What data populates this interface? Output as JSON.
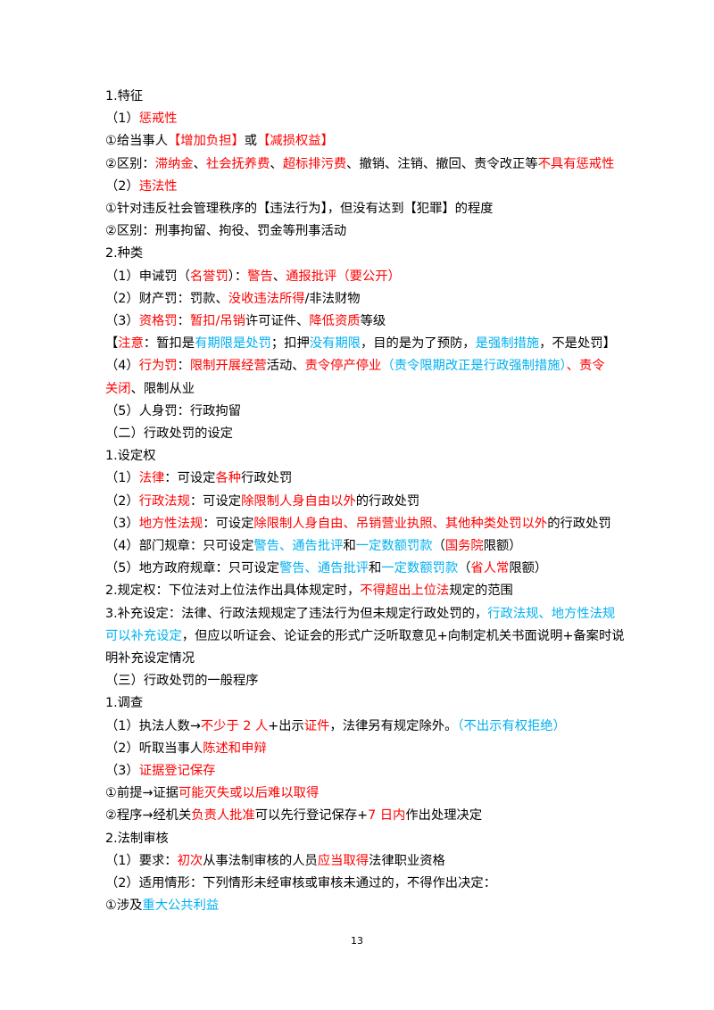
{
  "lines": [
    {
      "segments": [
        {
          "text": "1.特征",
          "color": "#000000"
        }
      ]
    },
    {
      "segments": [
        {
          "text": "（1）",
          "color": "#000000"
        },
        {
          "text": "惩戒性",
          "color": "#ff0000"
        }
      ]
    },
    {
      "segments": [
        {
          "text": "①给当事人",
          "color": "#000000"
        },
        {
          "text": "【增加负担】",
          "color": "#ff0000"
        },
        {
          "text": "或",
          "color": "#000000"
        },
        {
          "text": "【减损权益】",
          "color": "#ff0000"
        }
      ]
    },
    {
      "segments": [
        {
          "text": "②区别：",
          "color": "#000000"
        },
        {
          "text": "滞纳金",
          "color": "#ff0000"
        },
        {
          "text": "、",
          "color": "#000000"
        },
        {
          "text": "社会抚养费",
          "color": "#ff0000"
        },
        {
          "text": "、",
          "color": "#000000"
        },
        {
          "text": "超标排污费",
          "color": "#ff0000"
        },
        {
          "text": "、撤销、注销、撤回、责令改正等",
          "color": "#000000"
        },
        {
          "text": "不具有惩戒性",
          "color": "#ff0000"
        }
      ]
    },
    {
      "segments": [
        {
          "text": "（2）",
          "color": "#000000"
        },
        {
          "text": "违法性",
          "color": "#ff0000"
        }
      ]
    },
    {
      "segments": [
        {
          "text": "①针对违反社会管理秩序的【违法行为】，但没有达到【犯罪】的程度",
          "color": "#000000"
        }
      ]
    },
    {
      "segments": [
        {
          "text": "②区别：刑事拘留、拘役、罚金等刑事活动",
          "color": "#000000"
        }
      ]
    },
    {
      "segments": [
        {
          "text": "2.种类",
          "color": "#000000"
        }
      ]
    },
    {
      "segments": [
        {
          "text": "（1）申诫罚（",
          "color": "#000000"
        },
        {
          "text": "名誉罚",
          "color": "#ff0000"
        },
        {
          "text": "）：",
          "color": "#000000"
        },
        {
          "text": "警告",
          "color": "#ff0000"
        },
        {
          "text": "、",
          "color": "#000000"
        },
        {
          "text": "通报批评",
          "color": "#ff0000"
        },
        {
          "text": "（要公开）",
          "color": "#ff0000"
        }
      ]
    },
    {
      "segments": [
        {
          "text": "（2）财产罚：罚款、",
          "color": "#000000"
        },
        {
          "text": "没收违法所得",
          "color": "#ff0000"
        },
        {
          "text": "/非法财物",
          "color": "#000000"
        }
      ]
    },
    {
      "segments": [
        {
          "text": "（3）",
          "color": "#000000"
        },
        {
          "text": "资格罚",
          "color": "#ff0000"
        },
        {
          "text": "：",
          "color": "#000000"
        },
        {
          "text": "暂扣/吊销",
          "color": "#ff0000"
        },
        {
          "text": "许可证件、",
          "color": "#000000"
        },
        {
          "text": "降低资质",
          "color": "#ff0000"
        },
        {
          "text": "等级",
          "color": "#000000"
        }
      ]
    },
    {
      "segments": [
        {
          "text": "【",
          "color": "#000000"
        },
        {
          "text": "注意",
          "color": "#ff0000"
        },
        {
          "text": "：暂扣是",
          "color": "#000000"
        },
        {
          "text": "有期限是处罚",
          "color": "#00b0f0"
        },
        {
          "text": "；扣押",
          "color": "#000000"
        },
        {
          "text": "没有期限",
          "color": "#00b0f0"
        },
        {
          "text": "，目的是为了预防，",
          "color": "#000000"
        },
        {
          "text": "是强制措施",
          "color": "#00b0f0"
        },
        {
          "text": "，不是处罚】",
          "color": "#000000"
        }
      ]
    },
    {
      "segments": [
        {
          "text": "（4）",
          "color": "#000000"
        },
        {
          "text": "行为罚",
          "color": "#ff0000"
        },
        {
          "text": "：",
          "color": "#000000"
        },
        {
          "text": "限制开展经营",
          "color": "#ff0000"
        },
        {
          "text": "活动、",
          "color": "#000000"
        },
        {
          "text": "责令停产停业",
          "color": "#ff0000"
        },
        {
          "text": "（责令限期改正是行政强制措施）",
          "color": "#00b0f0"
        },
        {
          "text": "、责令",
          "color": "#ff0000"
        }
      ]
    },
    {
      "segments": [
        {
          "text": "关闭",
          "color": "#ff0000"
        },
        {
          "text": "、限制从业",
          "color": "#000000"
        }
      ]
    },
    {
      "segments": [
        {
          "text": "（5）人身罚：行政拘留",
          "color": "#000000"
        }
      ]
    },
    {
      "segments": [
        {
          "text": "（二）行政处罚的设定",
          "color": "#000000"
        }
      ]
    },
    {
      "segments": [
        {
          "text": "1.设定权",
          "color": "#000000"
        }
      ]
    },
    {
      "segments": [
        {
          "text": "（1）",
          "color": "#000000"
        },
        {
          "text": "法律",
          "color": "#ff0000"
        },
        {
          "text": "：可设定",
          "color": "#000000"
        },
        {
          "text": "各种",
          "color": "#ff0000"
        },
        {
          "text": "行政处罚",
          "color": "#000000"
        }
      ]
    },
    {
      "segments": [
        {
          "text": "（2）",
          "color": "#000000"
        },
        {
          "text": "行政法规",
          "color": "#ff0000"
        },
        {
          "text": "：可设定",
          "color": "#000000"
        },
        {
          "text": "除限制人身自由以外",
          "color": "#ff0000"
        },
        {
          "text": "的行政处罚",
          "color": "#000000"
        }
      ]
    },
    {
      "segments": [
        {
          "text": "（3）",
          "color": "#000000"
        },
        {
          "text": "地方性法规",
          "color": "#ff0000"
        },
        {
          "text": "：可设定",
          "color": "#000000"
        },
        {
          "text": "除限制人身自由、吊销营业执照、其他种类处罚以外",
          "color": "#ff0000"
        },
        {
          "text": "的行政处罚",
          "color": "#000000"
        }
      ]
    },
    {
      "segments": [
        {
          "text": "（4）部门规章：只可设定",
          "color": "#000000"
        },
        {
          "text": "警告、通告批评",
          "color": "#00b0f0"
        },
        {
          "text": "和",
          "color": "#000000"
        },
        {
          "text": "一定数额罚款",
          "color": "#00b0f0"
        },
        {
          "text": "（",
          "color": "#000000"
        },
        {
          "text": "国务院",
          "color": "#ff0000"
        },
        {
          "text": "限额）",
          "color": "#000000"
        }
      ]
    },
    {
      "segments": [
        {
          "text": "（5）地方政府规章：只可设定",
          "color": "#000000"
        },
        {
          "text": "警告、通告批评",
          "color": "#00b0f0"
        },
        {
          "text": "和",
          "color": "#000000"
        },
        {
          "text": "一定数额罚款",
          "color": "#00b0f0"
        },
        {
          "text": "（",
          "color": "#000000"
        },
        {
          "text": "省人常",
          "color": "#ff0000"
        },
        {
          "text": "限额）",
          "color": "#000000"
        }
      ]
    },
    {
      "segments": [
        {
          "text": "2.规定权：下位法对上位法作出具体规定时，",
          "color": "#000000"
        },
        {
          "text": "不得超出上位法",
          "color": "#ff0000"
        },
        {
          "text": "规定的范围",
          "color": "#000000"
        }
      ]
    },
    {
      "segments": [
        {
          "text": "3.补充设定：法律、行政法规规定了违法行为但未规定行政处罚的，",
          "color": "#000000"
        },
        {
          "text": "行政法规、地方性法规",
          "color": "#00b0f0"
        }
      ]
    },
    {
      "segments": [
        {
          "text": "可以补充设定",
          "color": "#00b0f0"
        },
        {
          "text": "，但应以听证会、论证会的形式广泛听取意见+向制定机关书面说明+备案时说",
          "color": "#000000"
        }
      ]
    },
    {
      "segments": [
        {
          "text": "明补充设定情况",
          "color": "#000000"
        }
      ]
    },
    {
      "segments": [
        {
          "text": "（三）行政处罚的一般程序",
          "color": "#000000"
        }
      ]
    },
    {
      "segments": [
        {
          "text": "1.调查",
          "color": "#000000"
        }
      ]
    },
    {
      "segments": [
        {
          "text": "（1）执法人数→",
          "color": "#000000"
        },
        {
          "text": "不少于 2 人",
          "color": "#ff0000"
        },
        {
          "text": "+出示",
          "color": "#000000"
        },
        {
          "text": "证件",
          "color": "#ff0000"
        },
        {
          "text": "，法律另有规定除外。",
          "color": "#000000"
        },
        {
          "text": "（不出示有权拒绝）",
          "color": "#00b0f0"
        }
      ]
    },
    {
      "segments": [
        {
          "text": "（2）听取当事人",
          "color": "#000000"
        },
        {
          "text": "陈述和申辩",
          "color": "#ff0000"
        }
      ]
    },
    {
      "segments": [
        {
          "text": "（3）",
          "color": "#000000"
        },
        {
          "text": "证据登记保存",
          "color": "#ff0000"
        }
      ]
    },
    {
      "segments": [
        {
          "text": "①前提→证据",
          "color": "#000000"
        },
        {
          "text": "可能灭失或以后难以取得",
          "color": "#ff0000"
        }
      ]
    },
    {
      "segments": [
        {
          "text": "②程序→经机关",
          "color": "#000000"
        },
        {
          "text": "负责人批准",
          "color": "#ff0000"
        },
        {
          "text": "可以先行登记保存+",
          "color": "#000000"
        },
        {
          "text": "7 日内",
          "color": "#ff0000"
        },
        {
          "text": "作出处理决定",
          "color": "#000000"
        }
      ]
    },
    {
      "segments": [
        {
          "text": "2.法制审核",
          "color": "#000000"
        }
      ]
    },
    {
      "segments": [
        {
          "text": "（1）要求：",
          "color": "#000000"
        },
        {
          "text": "初次",
          "color": "#ff0000"
        },
        {
          "text": "从事法制审核的人员",
          "color": "#000000"
        },
        {
          "text": "应当取得",
          "color": "#ff0000"
        },
        {
          "text": "法律职业资格",
          "color": "#000000"
        }
      ]
    },
    {
      "segments": [
        {
          "text": "（2）适用情形：下列情形未经审核或审核未通过的，不得作出决定：",
          "color": "#000000"
        }
      ]
    },
    {
      "segments": [
        {
          "text": "①涉及",
          "color": "#000000"
        },
        {
          "text": "重大公共利益",
          "color": "#00b0f0"
        }
      ]
    }
  ],
  "page_number": "13"
}
